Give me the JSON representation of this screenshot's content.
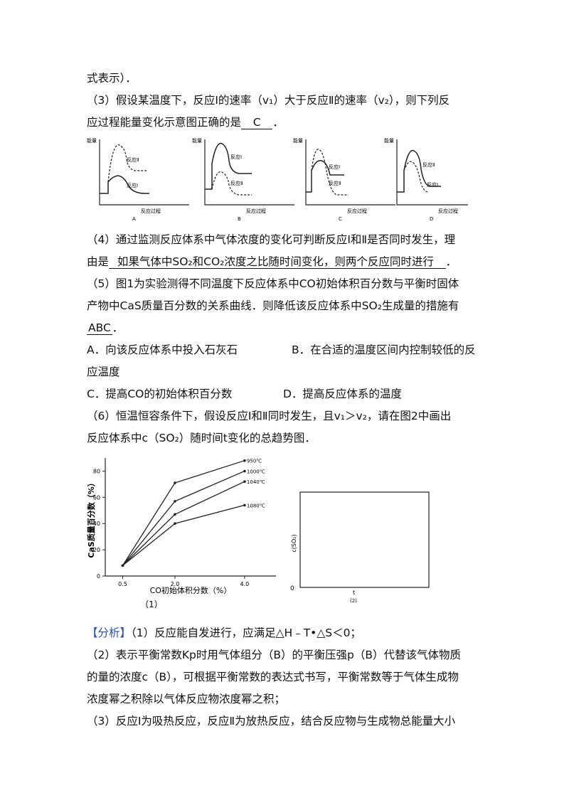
{
  "text": {
    "l1": "式表示）．",
    "l2": "（3）假设某温度下，反应Ⅰ的速率（v₁）大于反应Ⅱ的速率（v₂），则下列反",
    "l3a": "应过程能量变化示意图正确的是",
    "l3ans": "C",
    "l3b": "．",
    "l4": "（4）通过监测反应体系中气体浓度的变化可判断反应Ⅰ和Ⅱ是否同时发生，理",
    "l5a": "由是",
    "l5ans": "如果气体中SO₂和CO₂浓度之比随时间变化，则两个反应同时进行",
    "l5b": "．",
    "l6": "（5）图1为实验测得不同温度下反应体系中CO初始体积百分数与平衡时固体",
    "l7": "产物中CaS质量百分数的关系曲线．则降低该反应体系中SO₂生成量的措施有",
    "l8ans": "ABC",
    "l8b": "．",
    "optA": "A．向该反应体系中投入石灰石",
    "optB": "B．在合适的温度区间内控制较低的反",
    "optB2": "应温度",
    "optC": "C．提高CO的初始体积百分数",
    "optD": "D．提高反应体系的温度",
    "l11": "（6）恒温恒容条件下，假设反应Ⅰ和Ⅱ同时发生，且v₁＞v₂，请在图2中画出",
    "l12": "反应体系中c（SO₂）随时间t变化的总趋势图．",
    "analysis_tag": "【分析】",
    "a1": "（1）反应能自发进行，应满足△H﹣T•△S＜0；",
    "a2": "（2）表示平衡常数Kp时用气体组分（B）的平衡压强p（B）代替该气体物质",
    "a3": "的量的浓度c（B），可根据平衡常数的表达式书写，平衡常数等于气体生成物",
    "a4": "浓度幂之积除以气体反应物浓度幂之积；",
    "a5": "（3）反应Ⅰ为吸热反应，反应Ⅱ为放热反应，结合反应物与生成物总能量大小"
  },
  "energy_diagrams": {
    "y_label": "能量",
    "x_label": "反应过程",
    "curve1": "反应Ⅰ",
    "curve2": "反应Ⅱ",
    "panels": [
      "A",
      "B",
      "C",
      "D"
    ]
  },
  "chart_data": [
    {
      "type": "line",
      "caption": "（1）",
      "xlabel": "CO初始体积分数（%）",
      "ylabel": "CaS质量百分数（%）",
      "x": [
        0.5,
        2.0,
        4.0
      ],
      "x_ticks": [
        "0.5",
        "2.0",
        "4.0"
      ],
      "y_ticks": [
        "0",
        "20",
        "40",
        "60",
        "80"
      ],
      "ylim": [
        0,
        90
      ],
      "series": [
        {
          "name": "950℃",
          "values": [
            8,
            71,
            88
          ]
        },
        {
          "name": "1000℃",
          "values": [
            8,
            57,
            80
          ]
        },
        {
          "name": "1040℃",
          "values": [
            8,
            47,
            72
          ]
        },
        {
          "name": "1080℃",
          "values": [
            8,
            40,
            54
          ]
        }
      ]
    },
    {
      "type": "line",
      "caption": "(2)",
      "xlabel": "t",
      "ylabel": "c(SO₂)",
      "origin": "0",
      "series": []
    }
  ]
}
